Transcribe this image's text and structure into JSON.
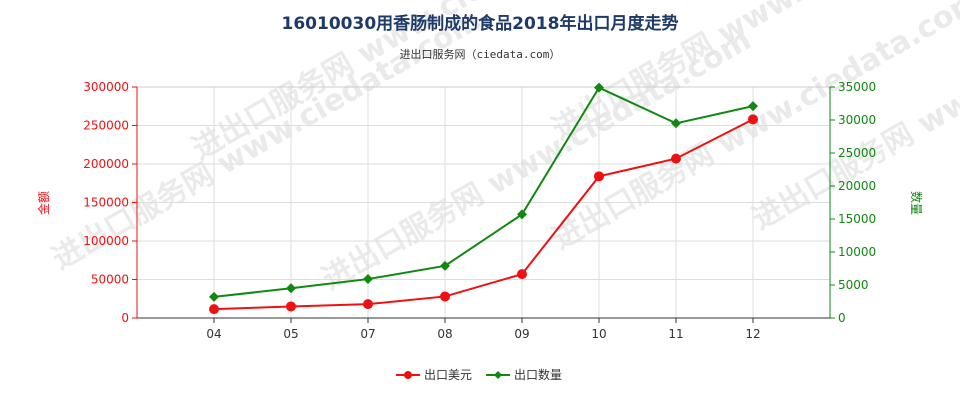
{
  "chart_data": {
    "type": "line",
    "title": "16010030用香肠制成的食品2018年出口月度走势",
    "subtitle": "进出口服务网（ciedata.com）",
    "watermark": "进出口服务网 www.ciedata.com",
    "categories": [
      "04",
      "05",
      "07",
      "08",
      "09",
      "10",
      "11",
      "12"
    ],
    "series": [
      {
        "name": "出口美元",
        "axis": "left",
        "color": "#ee1111",
        "values": [
          11500,
          15000,
          18000,
          28000,
          57000,
          184000,
          207000,
          258000
        ]
      },
      {
        "name": "出口数量",
        "axis": "right",
        "color": "#118811",
        "values": [
          3200,
          4500,
          5900,
          7900,
          15700,
          34900,
          29500,
          32100
        ]
      }
    ],
    "left_axis": {
      "label": "金额",
      "min": 0,
      "max": 300000,
      "ticks": [
        "0",
        "50000",
        "100000",
        "150000",
        "200000",
        "250000",
        "300000"
      ],
      "color": "#ee1111"
    },
    "right_axis": {
      "label": "数量",
      "min": 0,
      "max": 35000,
      "ticks": [
        "0",
        "5000",
        "10000",
        "15000",
        "20000",
        "25000",
        "30000",
        "35000"
      ],
      "color": "#118811"
    },
    "grid": true,
    "legend": "bottom-center"
  }
}
